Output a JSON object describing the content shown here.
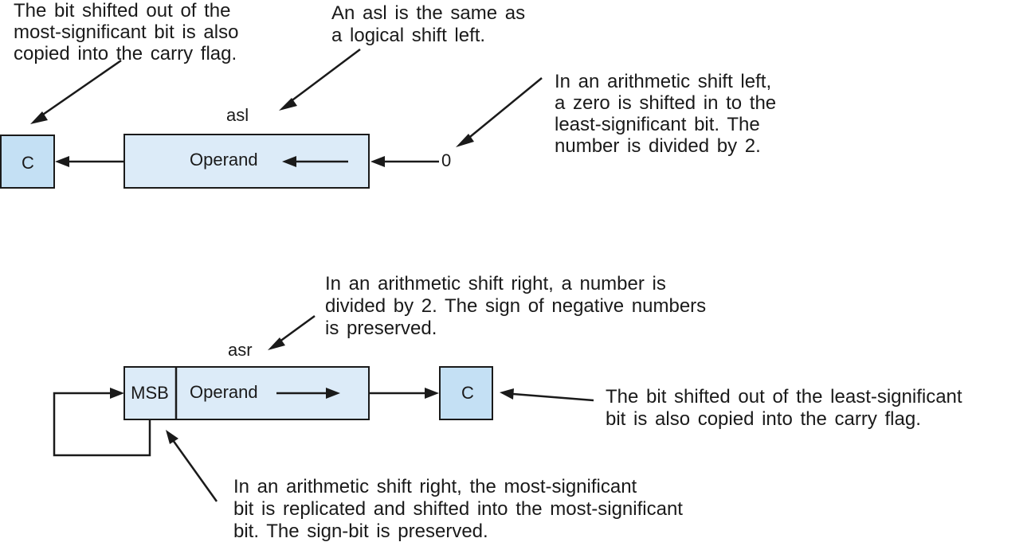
{
  "colors": {
    "register_fill": "#dcebf8",
    "carry_fill": "#c4e0f4",
    "ink": "#1a1a1a"
  },
  "asl": {
    "title": "asl",
    "carry_label": "C",
    "operand_label": "Operand",
    "shift_in_value": "0",
    "note_carry": [
      "The bit shifted out of the",
      "most-significant bit is also",
      "copied into the carry flag."
    ],
    "note_same": [
      "An asl is the same as",
      "a logical shift left."
    ],
    "note_zero": [
      "In an arithmetic shift left,",
      "a zero is shifted in to the",
      "least-significant bit. The",
      "number is divided by 2."
    ]
  },
  "asr": {
    "title": "asr",
    "msb_label": "MSB",
    "operand_label": "Operand",
    "carry_label": "C",
    "note_divide": [
      "In an arithmetic shift right, a number is",
      "divided by 2. The sign of negative numbers",
      "is preserved."
    ],
    "note_carry": [
      "The bit shifted out of the least-significant",
      "bit is  also copied into the carry flag."
    ],
    "note_msb": [
      "In an arithmetic shift right, the most-significant",
      "bit is replicated and shifted into the most-significant",
      "bit. The sign-bit is preserved."
    ]
  }
}
